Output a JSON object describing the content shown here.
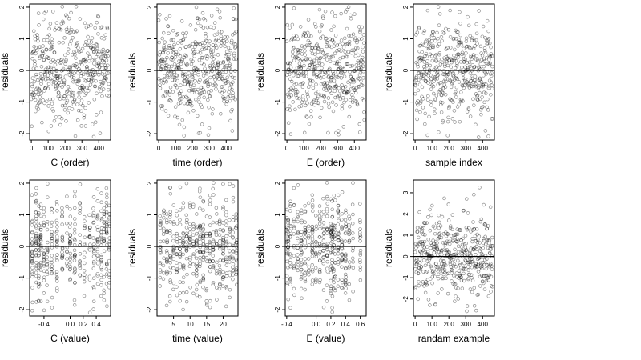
{
  "chart_data": [
    {
      "type": "scatter",
      "xlabel": "C (order)",
      "ylabel": "residuals",
      "xlim": [
        -10,
        470
      ],
      "ylim": [
        -2.2,
        2.1
      ],
      "xticks": [
        0,
        100,
        200,
        300,
        400
      ],
      "xtick_labels": [
        "0",
        "100",
        "200",
        "300",
        "400"
      ],
      "yticks": [
        -2,
        -1,
        0,
        1,
        2
      ],
      "ytick_labels": [
        "-2",
        "-1",
        "0",
        "1",
        "2"
      ],
      "hline": 0,
      "grid": false,
      "n_points": 460,
      "x_mode": "index",
      "cluster_x": [],
      "y_sd": 0.8,
      "seed": 11
    },
    {
      "type": "scatter",
      "xlabel": "time (order)",
      "ylabel": "residuals",
      "xlim": [
        -10,
        470
      ],
      "ylim": [
        -2.2,
        2.1
      ],
      "xticks": [
        0,
        100,
        200,
        300,
        400
      ],
      "xtick_labels": [
        "0",
        "100",
        "200",
        "300",
        "400"
      ],
      "yticks": [
        -2,
        -1,
        0,
        1,
        2
      ],
      "ytick_labels": [
        "-2",
        "-1",
        "0",
        "1",
        "2"
      ],
      "hline": 0,
      "grid": false,
      "n_points": 460,
      "x_mode": "index",
      "cluster_x": [],
      "y_sd": 0.8,
      "seed": 23
    },
    {
      "type": "scatter",
      "xlabel": "E (order)",
      "ylabel": "residuals",
      "xlim": [
        -10,
        470
      ],
      "ylim": [
        -2.2,
        2.1
      ],
      "xticks": [
        0,
        100,
        200,
        300,
        400
      ],
      "xtick_labels": [
        "0",
        "100",
        "200",
        "300",
        "400"
      ],
      "yticks": [
        -2,
        -1,
        0,
        1,
        2
      ],
      "ytick_labels": [
        "-2",
        "-1",
        "0",
        "1",
        "2"
      ],
      "hline": 0,
      "grid": false,
      "n_points": 460,
      "x_mode": "index",
      "cluster_x": [],
      "y_sd": 0.8,
      "seed": 37
    },
    {
      "type": "scatter",
      "xlabel": "sample index",
      "ylabel": "residuals",
      "xlim": [
        -10,
        470
      ],
      "ylim": [
        -2.2,
        2.1
      ],
      "xticks": [
        0,
        100,
        200,
        300,
        400
      ],
      "xtick_labels": [
        "0",
        "100",
        "200",
        "300",
        "400"
      ],
      "yticks": [
        -2,
        -1,
        0,
        1,
        2
      ],
      "ytick_labels": [
        "-2",
        "-1",
        "0",
        "1",
        "2"
      ],
      "hline": 0,
      "grid": false,
      "n_points": 460,
      "x_mode": "index",
      "cluster_x": [],
      "y_sd": 0.8,
      "seed": 41
    },
    {
      "type": "scatter",
      "xlabel": "C (value)",
      "ylabel": "residuals",
      "xlim": [
        -0.62,
        0.62
      ],
      "ylim": [
        -2.2,
        2.1
      ],
      "xticks": [
        -0.4,
        0.0,
        0.2,
        0.4
      ],
      "xtick_labels": [
        "-0.4",
        "0.0",
        "0.2",
        "0.4"
      ],
      "yticks": [
        -2,
        -1,
        0,
        1,
        2
      ],
      "ytick_labels": [
        "-2",
        "-1",
        "0",
        "1",
        "2"
      ],
      "hline": 0,
      "grid": false,
      "n_points": 460,
      "x_mode": "clustered",
      "cluster_x": [
        -0.58,
        -0.52,
        -0.48,
        -0.45,
        -0.4,
        -0.35,
        -0.28,
        -0.2,
        -0.12,
        -0.05,
        0.0,
        0.07,
        0.15,
        0.22,
        0.3,
        0.36,
        0.42,
        0.48,
        0.52,
        0.56,
        0.6
      ],
      "y_sd": 0.8,
      "seed": 53
    },
    {
      "type": "scatter",
      "xlabel": "time (value)",
      "ylabel": "residuals",
      "xlim": [
        0,
        24.5
      ],
      "ylim": [
        -2.2,
        2.1
      ],
      "xticks": [
        5,
        10,
        15,
        20
      ],
      "xtick_labels": [
        "5",
        "10",
        "15",
        "20"
      ],
      "yticks": [
        -2,
        -1,
        0,
        1,
        2
      ],
      "ytick_labels": [
        "-2",
        "-1",
        "0",
        "1",
        "2"
      ],
      "hline": 0,
      "grid": false,
      "n_points": 460,
      "x_mode": "clustered",
      "cluster_x": [
        1,
        2,
        3,
        4,
        5,
        6,
        7,
        8,
        9,
        10,
        11,
        12,
        13,
        14,
        15,
        16,
        17,
        18,
        19,
        20,
        21,
        22,
        23,
        24
      ],
      "y_sd": 0.8,
      "seed": 67
    },
    {
      "type": "scatter",
      "xlabel": "E (value)",
      "ylabel": "residuals",
      "xlim": [
        -0.42,
        0.68
      ],
      "ylim": [
        -2.2,
        2.1
      ],
      "xticks": [
        -0.4,
        0.0,
        0.2,
        0.4,
        0.6
      ],
      "xtick_labels": [
        "-0.4",
        "0.0",
        "0.2",
        "0.4",
        "0.6"
      ],
      "yticks": [
        -2,
        -1,
        0,
        1,
        2
      ],
      "ytick_labels": [
        "-2",
        "-1",
        "0",
        "1",
        "2"
      ],
      "hline": 0,
      "grid": false,
      "n_points": 460,
      "x_mode": "clustered",
      "cluster_x": [
        -0.4,
        -0.38,
        -0.35,
        -0.3,
        -0.25,
        -0.2,
        -0.15,
        -0.1,
        -0.05,
        0.0,
        0.05,
        0.1,
        0.15,
        0.2,
        0.22,
        0.24,
        0.26,
        0.3,
        0.35,
        0.4,
        0.45,
        0.5,
        0.6
      ],
      "y_sd": 0.8,
      "seed": 79
    },
    {
      "type": "scatter",
      "xlabel": "randam example",
      "ylabel": "residuals",
      "xlim": [
        -10,
        470
      ],
      "ylim": [
        -2.8,
        3.6
      ],
      "xticks": [
        0,
        100,
        200,
        300,
        400
      ],
      "xtick_labels": [
        "0",
        "100",
        "200",
        "300",
        "400"
      ],
      "yticks": [
        -2,
        -1,
        0,
        1,
        2,
        3
      ],
      "ytick_labels": [
        "-2",
        "-1",
        "0",
        "1",
        "2",
        "3"
      ],
      "hline": 0,
      "grid": false,
      "n_points": 460,
      "x_mode": "index",
      "cluster_x": [],
      "y_sd": 1.0,
      "seed": 97
    }
  ]
}
